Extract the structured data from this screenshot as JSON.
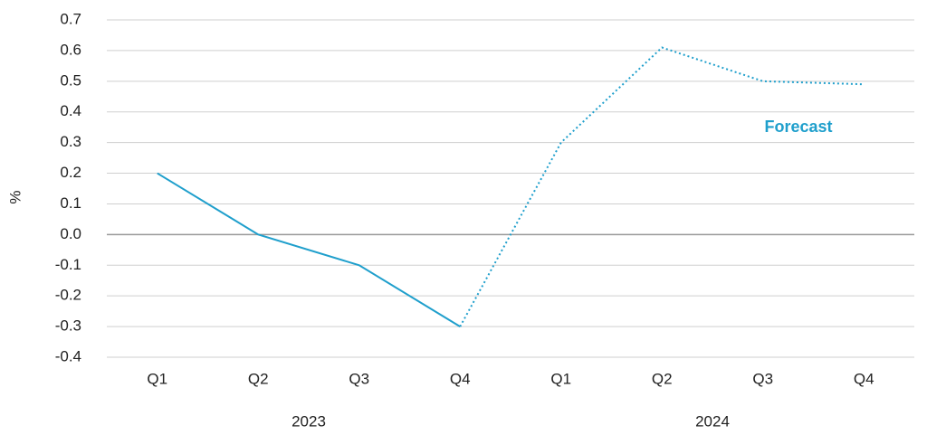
{
  "chart_data": {
    "type": "line",
    "y_label": "%",
    "categories": [
      "Q1",
      "Q2",
      "Q3",
      "Q4",
      "Q1",
      "Q2",
      "Q3",
      "Q4"
    ],
    "group_labels": [
      "2023",
      "2024"
    ],
    "series": [
      {
        "color": "#1f9fcc",
        "dash": "solid",
        "values": [
          0.2,
          0.0,
          -0.1,
          -0.3,
          null,
          null,
          null,
          null
        ]
      },
      {
        "name": "Forecast",
        "color": "#1f9fcc",
        "dash": "dotted",
        "values": [
          null,
          null,
          null,
          -0.3,
          0.3,
          0.61,
          0.5,
          0.49
        ]
      }
    ],
    "ylim": [
      -0.4,
      0.7
    ],
    "yticks": [
      -0.4,
      -0.3,
      -0.2,
      -0.1,
      {
        "value": 0,
        "label": "0.0"
      },
      0.1,
      0.2,
      0.3,
      0.4,
      0.5,
      0.6,
      0.7
    ],
    "grid": true
  }
}
